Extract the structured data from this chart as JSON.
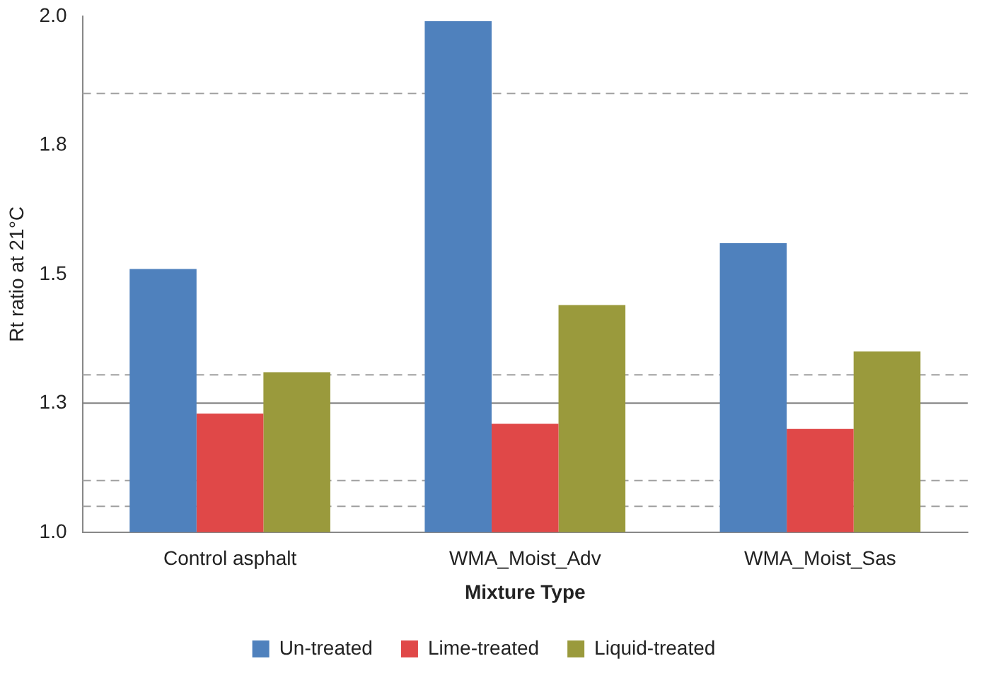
{
  "chart_data": {
    "type": "bar",
    "xlabel": "Mixture Type",
    "ylabel": "Rt ratio at 21°C",
    "categories": [
      "Control asphalt",
      "WMA_Moist_Adv",
      "WMA_Moist_Sas"
    ],
    "series": [
      {
        "name": "Un-treated",
        "color": "#4f81bd",
        "values": [
          1.51,
          1.99,
          1.56
        ]
      },
      {
        "name": "Lime-treated",
        "color": "#e04848",
        "values": [
          1.23,
          1.21,
          1.2
        ]
      },
      {
        "name": "Liquid-treated",
        "color": "#9a9a3c",
        "values": [
          1.31,
          1.44,
          1.35
        ]
      }
    ],
    "ylim": [
      1.0,
      2.0
    ],
    "yticks": [
      {
        "value": 1.0,
        "label": "1.0"
      },
      {
        "value": 1.25,
        "label": "1.3"
      },
      {
        "value": 1.5,
        "label": "1.5"
      },
      {
        "value": 1.75,
        "label": "1.8"
      },
      {
        "value": 2.0,
        "label": "2.0"
      }
    ],
    "ref_lines": [
      {
        "axis": "y",
        "value": 1.85,
        "color": "#a0a0a0",
        "line_style": "dashed"
      },
      {
        "axis": "y",
        "value": 1.305,
        "color": "#a0a0a0",
        "line_style": "dashed"
      },
      {
        "axis": "y",
        "value": 1.25,
        "color": "#808080",
        "line_style": "solid"
      },
      {
        "axis": "y",
        "value": 1.1,
        "color": "#a0a0a0",
        "line_style": "dashed"
      },
      {
        "axis": "y",
        "value": 1.05,
        "color": "#a0a0a0",
        "line_style": "dashed"
      }
    ],
    "legend": "bottom",
    "grid": false
  }
}
